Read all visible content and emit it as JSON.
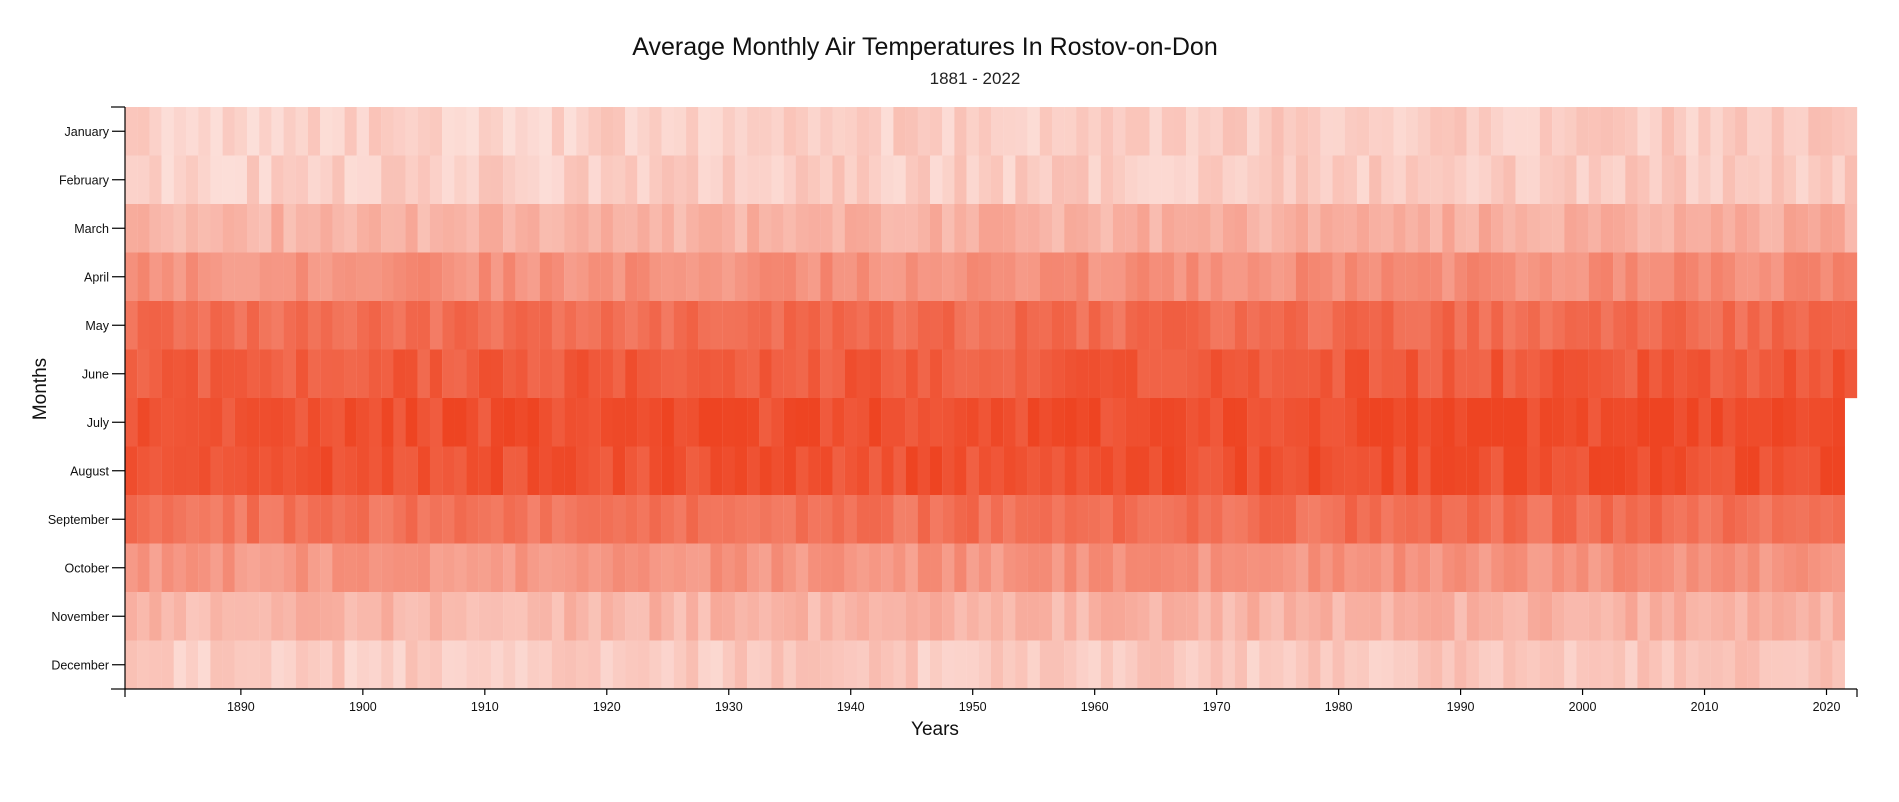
{
  "chart_data": {
    "type": "heatmap",
    "title": "Average Monthly Air Temperatures In Rostov-on-Don",
    "subtitle": "1881 - 2022",
    "xlabel": "Years",
    "ylabel": "Months",
    "x_range": [
      1881,
      2022
    ],
    "x_ticks": [
      "1890",
      "1900",
      "1910",
      "1920",
      "1930",
      "1940",
      "1950",
      "1960",
      "1970",
      "1980",
      "1990",
      "2000",
      "2010",
      "2020"
    ],
    "months": [
      "January",
      "February",
      "March",
      "April",
      "May",
      "June",
      "July",
      "August",
      "September",
      "October",
      "November",
      "December"
    ],
    "color_scale": {
      "low_color": "#ffffff",
      "high_color": "#ee4422"
    },
    "last_year_months_shown": 6,
    "typical_intensity_by_month": [
      0.24,
      0.25,
      0.4,
      0.58,
      0.76,
      0.86,
      0.93,
      0.91,
      0.74,
      0.55,
      0.38,
      0.27
    ],
    "grid": false
  }
}
